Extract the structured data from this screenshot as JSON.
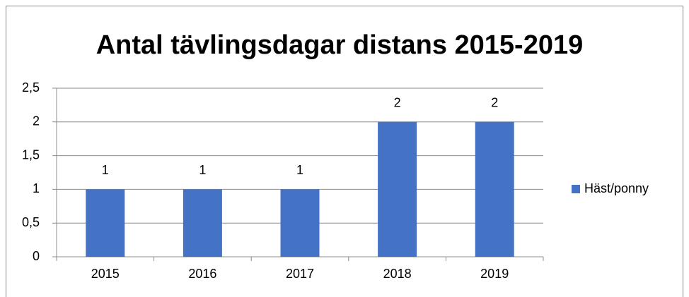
{
  "chart_data": {
    "type": "bar",
    "title": "Antal tävlingsdagar distans 2015-2019",
    "categories": [
      "2015",
      "2016",
      "2017",
      "2018",
      "2019"
    ],
    "series": [
      {
        "name": "Häst/ponny",
        "color": "#4472c4",
        "values": [
          1,
          1,
          1,
          2,
          2
        ]
      }
    ],
    "ylim": [
      0,
      2.5
    ],
    "yticks": [
      0,
      {
        "value": 0.5,
        "label": "0,5"
      },
      1,
      {
        "value": 1.5,
        "label": "1,5"
      },
      2,
      {
        "value": 2.5,
        "label": "2,5"
      }
    ],
    "grid": true,
    "legend": "right"
  }
}
